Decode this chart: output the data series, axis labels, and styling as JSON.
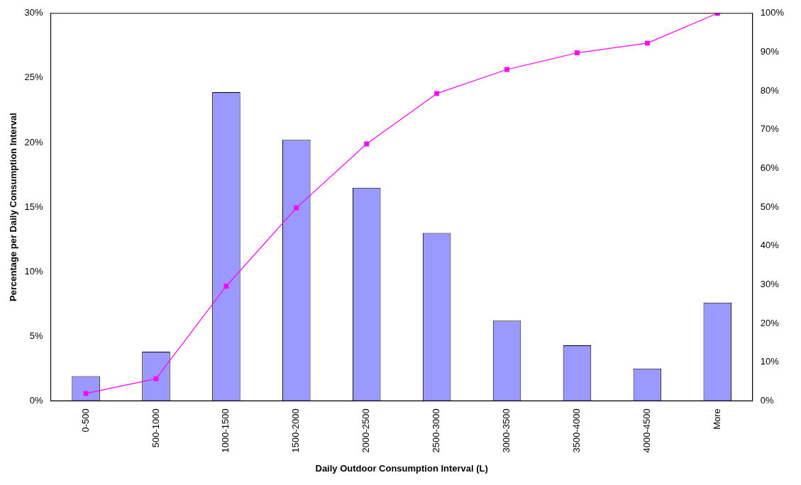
{
  "chart_data": {
    "type": "bar",
    "xlabel": "Daily Outdoor Consumption Interval (L)",
    "ylabel": "Percentage per Daily Consumption Interval",
    "categories": [
      "0-500",
      "500-1000",
      "1000-1500",
      "1500-2000",
      "2000-2500",
      "2500-3000",
      "3000-3500",
      "3500-4000",
      "4000-4500",
      "More"
    ],
    "series": [
      {
        "color": "#9999ff",
        "values": [
          1.9,
          3.8,
          23.9,
          20.2,
          16.5,
          13.0,
          6.2,
          4.3,
          2.5,
          7.6
        ]
      },
      {
        "type": "line",
        "axis": "y2",
        "color": "#ff00ff",
        "values": [
          1.9,
          5.7,
          29.6,
          49.8,
          66.3,
          79.3,
          85.5,
          89.8,
          92.3,
          100
        ]
      }
    ],
    "ylim": [
      0,
      30
    ],
    "yticks": [
      {
        "value": 0,
        "label": "0%"
      },
      {
        "value": 5,
        "label": "5%"
      },
      {
        "value": 10,
        "label": "10%"
      },
      {
        "value": 15,
        "label": "15%"
      },
      {
        "value": 20,
        "label": "20%"
      },
      {
        "value": 25,
        "label": "25%"
      },
      {
        "value": 30,
        "label": "30%"
      }
    ],
    "y2lim": [
      0,
      100
    ],
    "y2ticks": [
      {
        "value": 0,
        "label": "0%"
      },
      {
        "value": 10,
        "label": "10%"
      },
      {
        "value": 20,
        "label": "20%"
      },
      {
        "value": 30,
        "label": "30%"
      },
      {
        "value": 40,
        "label": "40%"
      },
      {
        "value": 50,
        "label": "50%"
      },
      {
        "value": 60,
        "label": "60%"
      },
      {
        "value": 70,
        "label": "70%"
      },
      {
        "value": 80,
        "label": "80%"
      },
      {
        "value": 90,
        "label": "90%"
      },
      {
        "value": 100,
        "label": "100%"
      }
    ],
    "marker": "square",
    "grid": false,
    "legend": false
  }
}
